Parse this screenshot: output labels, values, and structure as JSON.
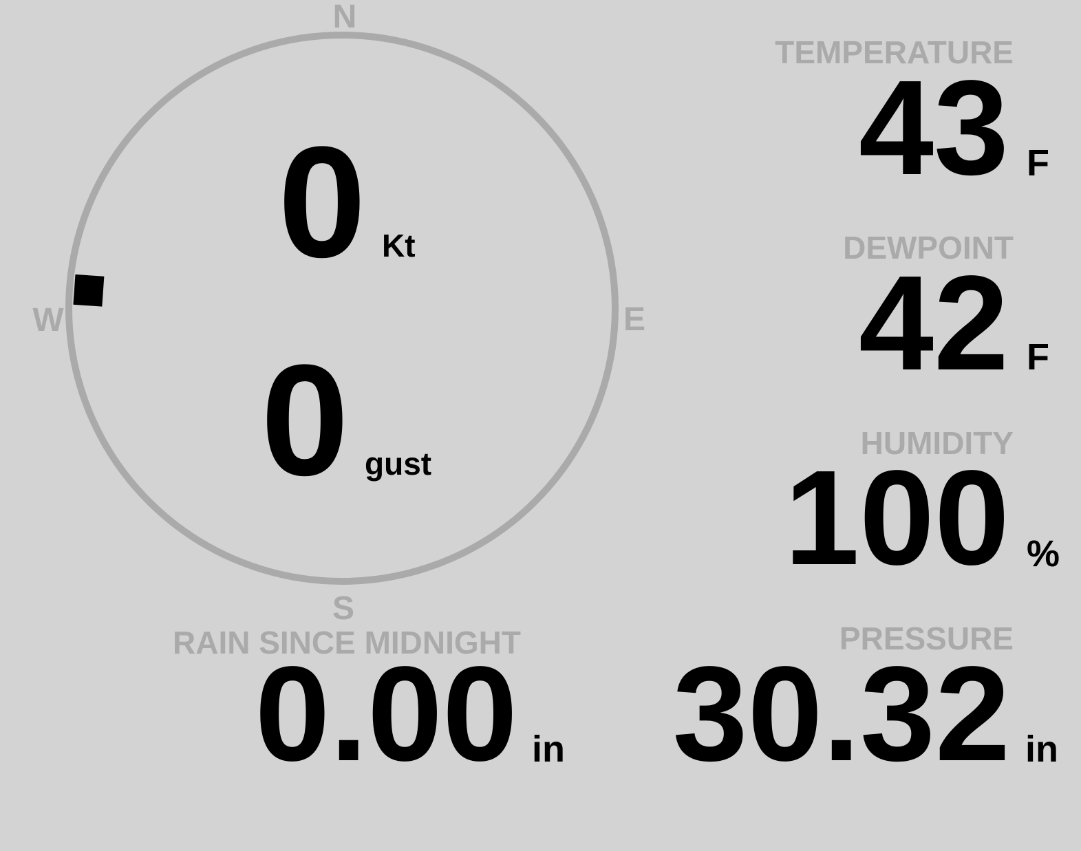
{
  "wind": {
    "compass": {
      "n": "N",
      "s": "S",
      "e": "E",
      "w": "W"
    },
    "speed": "0",
    "speed_unit": "Kt",
    "gust": "0",
    "gust_unit": "gust",
    "direction_deg": 274,
    "ring_color": "#aaaaaa",
    "marker_color": "#000000"
  },
  "temperature": {
    "label": "TEMPERATURE",
    "value": "43",
    "unit": "F"
  },
  "dewpoint": {
    "label": "DEWPOINT",
    "value": "42",
    "unit": "F"
  },
  "humidity": {
    "label": "HUMIDITY",
    "value": "100",
    "unit": "%"
  },
  "pressure": {
    "label": "PRESSURE",
    "value": "30.32",
    "unit": "in"
  },
  "rain": {
    "label": "RAIN SINCE MIDNIGHT",
    "value": "0.00",
    "unit": "in"
  },
  "colors": {
    "background": "#d3d3d3",
    "label": "#aaaaaa",
    "value": "#000000"
  }
}
